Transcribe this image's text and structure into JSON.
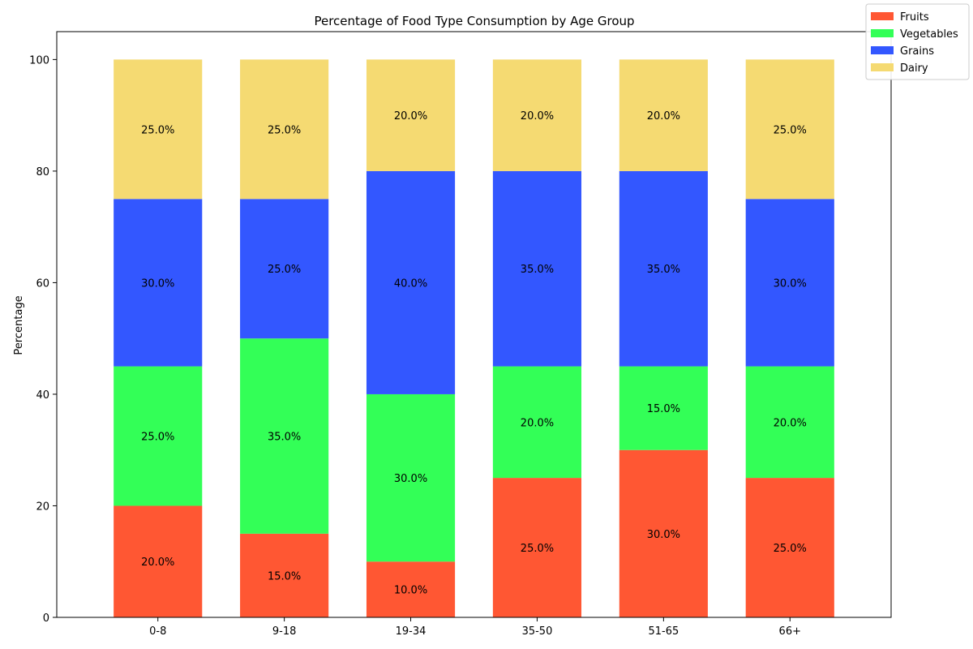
{
  "chart_data": {
    "type": "bar",
    "stacked": true,
    "title": "Percentage of Food Type Consumption by Age Group",
    "xlabel": "",
    "ylabel": "Percentage",
    "ylim": [
      0,
      105
    ],
    "yticks": [
      0,
      20,
      40,
      60,
      80,
      100
    ],
    "categories": [
      "0-8",
      "9-18",
      "19-34",
      "35-50",
      "51-65",
      "66+"
    ],
    "series": [
      {
        "name": "Fruits",
        "color": "#FF5733",
        "values": [
          20,
          15,
          10,
          25,
          30,
          25
        ]
      },
      {
        "name": "Vegetables",
        "color": "#33FF57",
        "values": [
          25,
          35,
          30,
          20,
          15,
          20
        ]
      },
      {
        "name": "Grains",
        "color": "#3357FF",
        "values": [
          30,
          25,
          40,
          35,
          35,
          30
        ]
      },
      {
        "name": "Dairy",
        "color": "#F5DA72",
        "values": [
          25,
          25,
          20,
          20,
          20,
          25
        ]
      }
    ],
    "legend_position": "top-right",
    "grid": false,
    "data_label_suffix": "%"
  }
}
